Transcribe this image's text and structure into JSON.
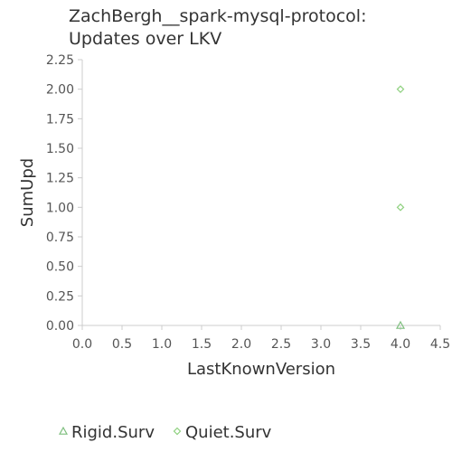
{
  "chart_data": {
    "type": "scatter",
    "title_lines": [
      "ZachBergh__spark-mysql-protocol:",
      "Updates over LKV"
    ],
    "xlabel": "LastKnownVersion",
    "ylabel": "SumUpd",
    "xlim": [
      0,
      4.5
    ],
    "ylim": [
      0,
      2.25
    ],
    "x_ticks": [
      "0.0",
      "0.5",
      "1.0",
      "1.5",
      "2.0",
      "2.5",
      "3.0",
      "3.5",
      "4.0",
      "4.5"
    ],
    "y_ticks": [
      "0.00",
      "0.25",
      "0.50",
      "0.75",
      "1.00",
      "1.25",
      "1.50",
      "1.75",
      "2.00",
      "2.25"
    ],
    "grid": false,
    "legend_position": "bottom",
    "series": [
      {
        "name": "Rigid.Surv",
        "marker": "triangle",
        "color": "#7fbf7f",
        "points": [
          {
            "x": 4.0,
            "y": 0.0
          }
        ]
      },
      {
        "name": "Quiet.Surv",
        "marker": "diamond",
        "color": "#8fd17f",
        "points": [
          {
            "x": 4.0,
            "y": 1.0
          },
          {
            "x": 4.0,
            "y": 2.0
          }
        ]
      }
    ]
  }
}
